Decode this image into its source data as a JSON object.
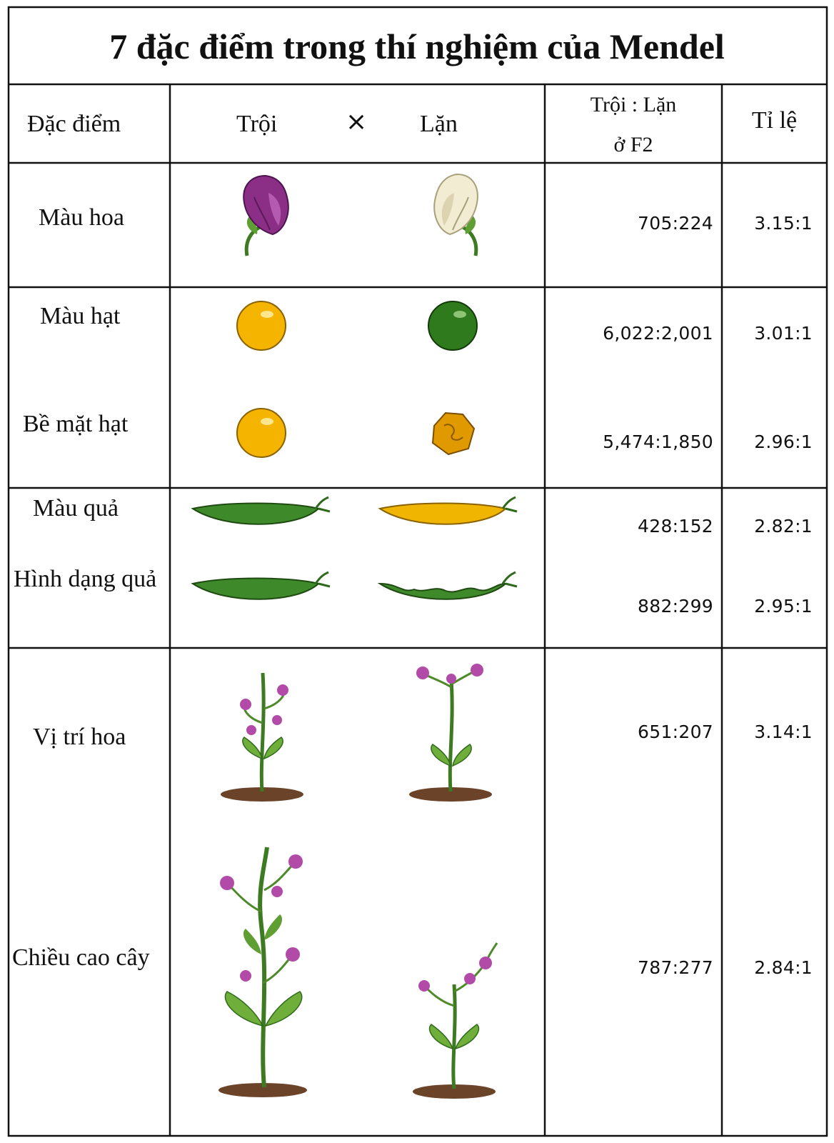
{
  "title": "7 đặc điểm trong thí nghiệm của Mendel",
  "header": {
    "trait": "Đặc điểm",
    "dominant": "Trội",
    "cross": "×",
    "recessive": "Lặn",
    "f2_line1": "Trội : Lặn",
    "f2_line2": "ở F2",
    "ratio": "Tỉ lệ"
  },
  "rows": [
    {
      "trait": "Màu hoa",
      "counts": "705:224",
      "ratio": "3.15:1",
      "dominant_icon": "purple-flower-icon",
      "recessive_icon": "white-flower-icon"
    },
    {
      "trait": "Màu hạt",
      "counts": "6,022:2,001",
      "ratio": "3.01:1",
      "dominant_icon": "yellow-seed-icon",
      "recessive_icon": "green-seed-icon"
    },
    {
      "trait": "Bề mặt hạt",
      "counts": "5,474:1,850",
      "ratio": "2.96:1",
      "dominant_icon": "round-seed-icon",
      "recessive_icon": "wrinkled-seed-icon"
    },
    {
      "trait": "Màu quả",
      "counts": "428:152",
      "ratio": "2.82:1",
      "dominant_icon": "green-pod-icon",
      "recessive_icon": "yellow-pod-icon"
    },
    {
      "trait": "Hình dạng quả",
      "counts": "882:299",
      "ratio": "2.95:1",
      "dominant_icon": "inflated-pod-icon",
      "recessive_icon": "constricted-pod-icon"
    },
    {
      "trait": "Vị trí hoa",
      "counts": "651:207",
      "ratio": "3.14:1",
      "dominant_icon": "axial-flower-plant-icon",
      "recessive_icon": "terminal-flower-plant-icon"
    },
    {
      "trait": "Chiều cao cây",
      "counts": "787:277",
      "ratio": "2.84:1",
      "dominant_icon": "tall-plant-icon",
      "recessive_icon": "short-plant-icon"
    }
  ],
  "colors": {
    "border": "#111111",
    "flower_purple": "#8b2e86",
    "flower_white": "#f1ecd2",
    "seed_yellow": "#f4b400",
    "seed_green": "#2f7a1c",
    "pod_green": "#3e8a2a",
    "pod_yellow": "#f0b500",
    "leaf_green": "#6fae3a",
    "soil": "#6b4328"
  }
}
